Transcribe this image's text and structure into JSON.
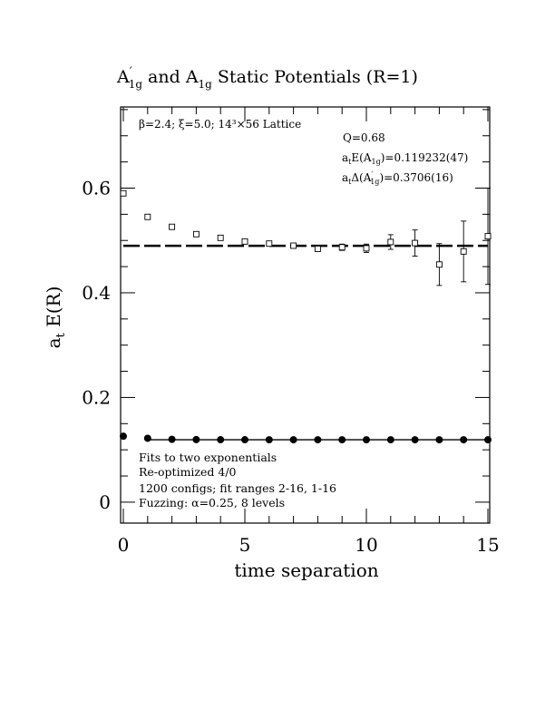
{
  "chart_data": {
    "type": "scatter",
    "title": {
      "prefix": "A",
      "prefix_sup": "′",
      "prefix_sub": "1g",
      "middle": " and A",
      "middle_sub": "1g",
      "suffix": " Static Potentials (R=1)"
    },
    "xlabel": "time separation",
    "ylabel": "a",
    "ylabel_sub": "t",
    "ylabel_suffix": " E(R)",
    "xlim": [
      0,
      15
    ],
    "ylim": [
      -0.04,
      0.755
    ],
    "x_ticks": [
      0,
      5,
      10,
      15
    ],
    "x_tick_labels": [
      "0",
      "5",
      "10",
      "15"
    ],
    "y_ticks": [
      0,
      0.2,
      0.4,
      0.6
    ],
    "y_tick_labels": [
      "0",
      "0.2",
      "0.4",
      "0.6"
    ],
    "params": "β=2.4; ξ=5.0; 14³×56 Lattice",
    "fit_quality": "Q=0.68",
    "ground_energy": {
      "prefix": "a",
      "prefix_sub": "t",
      "middle": "E(A",
      "middle_sub": "1g",
      "suffix": ")=0.119232(47)"
    },
    "gap_energy": {
      "prefix": "a",
      "prefix_sub": "t",
      "middle": "Δ(A",
      "middle_sup": "′",
      "middle_sub": "1g",
      "suffix": ")=0.3706(16)"
    },
    "notes": [
      "Fits to two exponentials",
      "Re-optimized 4/0",
      "1200 configs; fit ranges 2-16, 1-16",
      "Fuzzing: α=0.25, 8 levels"
    ],
    "series": [
      {
        "marker": "open-square",
        "x": [
          0,
          1,
          2,
          3,
          4,
          5,
          6,
          7,
          8,
          9,
          10,
          11,
          12,
          13,
          14,
          15
        ],
        "y": [
          0.59,
          0.545,
          0.526,
          0.512,
          0.505,
          0.498,
          0.494,
          0.49,
          0.484,
          0.487,
          0.485,
          0.497,
          0.495,
          0.454,
          0.479,
          0.508
        ],
        "err": [
          0.001,
          0.001,
          0.002,
          0.002,
          0.002,
          0.003,
          0.003,
          0.004,
          0.005,
          0.006,
          0.008,
          0.014,
          0.025,
          0.04,
          0.058,
          0.092
        ]
      },
      {
        "marker": "filled-circle",
        "x": [
          0,
          1,
          2,
          3,
          4,
          5,
          6,
          7,
          8,
          9,
          10,
          11,
          12,
          13,
          14,
          15
        ],
        "y": [
          0.126,
          0.122,
          0.12,
          0.1195,
          0.1193,
          0.1193,
          0.1192,
          0.1192,
          0.1192,
          0.1192,
          0.1192,
          0.1192,
          0.1192,
          0.1192,
          0.1192,
          0.1192
        ],
        "err": [
          0.0001,
          0.0001,
          0.0001,
          0.0001,
          0.0001,
          0.0001,
          0.0001,
          0.0001,
          0.0001,
          0.0001,
          0.0001,
          0.0001,
          0.0001,
          0.0001,
          0.0001,
          0.0001
        ]
      }
    ],
    "fits": [
      {
        "style": "dashed",
        "y": 0.4898,
        "x_range": [
          0,
          15
        ]
      },
      {
        "style": "solid",
        "y": 0.119232,
        "x_range": [
          1,
          15
        ]
      }
    ]
  }
}
